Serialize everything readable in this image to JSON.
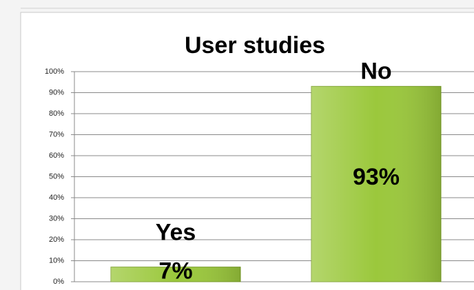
{
  "chart_data": {
    "type": "bar",
    "title": "User studies",
    "categories": [
      "Yes",
      "No"
    ],
    "values": [
      7,
      93
    ],
    "value_labels": [
      "7%",
      "93%"
    ],
    "color": "#9bc83c",
    "ylim": [
      0,
      100
    ],
    "yticks": [
      {
        "value": 0,
        "label": "0%"
      },
      {
        "value": 10,
        "label": "10%"
      },
      {
        "value": 20,
        "label": "20%"
      },
      {
        "value": 30,
        "label": "30%"
      },
      {
        "value": 40,
        "label": "40%"
      },
      {
        "value": 50,
        "label": "50%"
      },
      {
        "value": 60,
        "label": "60%"
      },
      {
        "value": 70,
        "label": "70%"
      },
      {
        "value": 80,
        "label": "80%"
      },
      {
        "value": 90,
        "label": "90%"
      },
      {
        "value": 100,
        "label": "100%"
      }
    ],
    "grid": true
  }
}
